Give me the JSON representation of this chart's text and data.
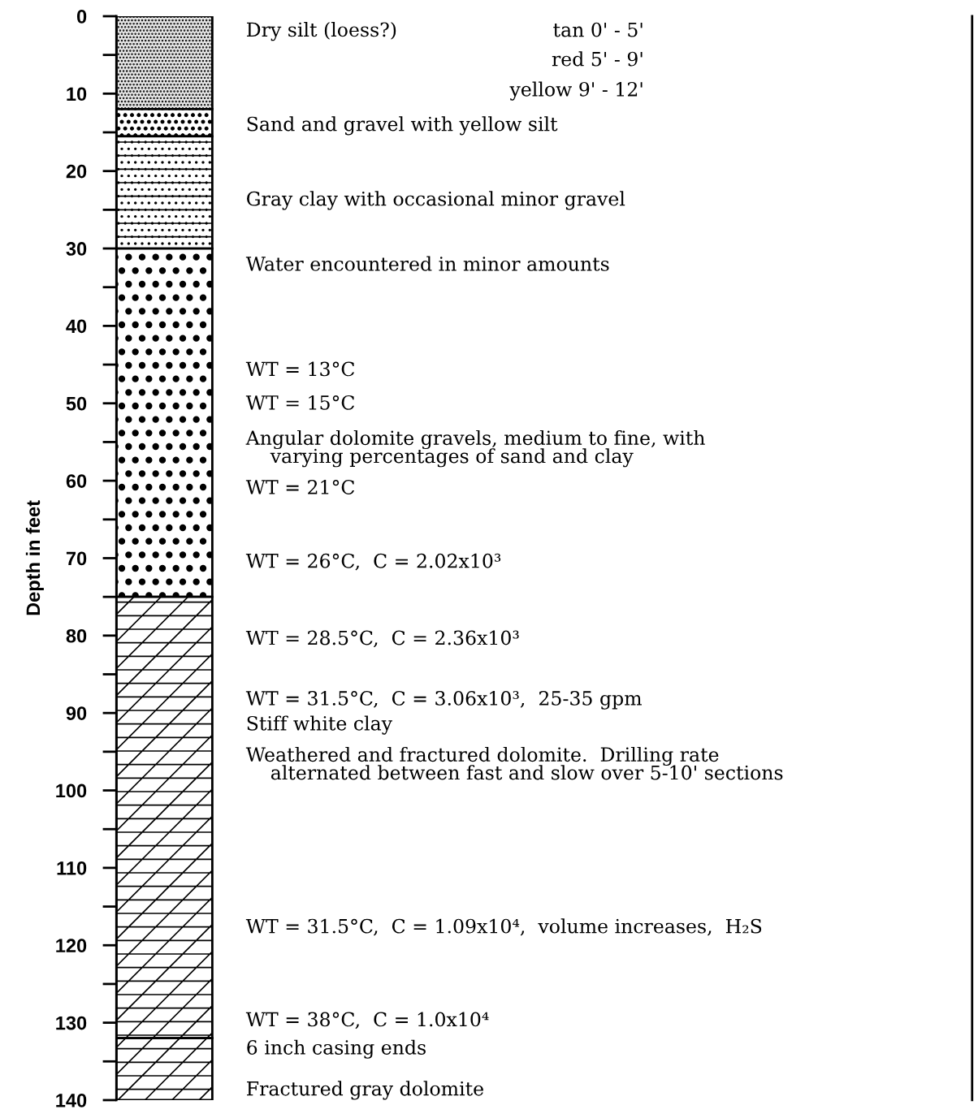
{
  "chart_data": {
    "type": "bar",
    "stacked": true,
    "categories": [
      null
    ],
    "series": [
      {
        "color": "#e6e6e6",
        "values": [
          12
        ]
      },
      {
        "color": "#ffffff",
        "values": [
          3.5
        ]
      },
      {
        "color": "#ffffff",
        "values": [
          14.5
        ]
      },
      {
        "color": "#ffffff",
        "values": [
          45
        ]
      },
      {
        "color": "#ffffff",
        "values": [
          57
        ]
      },
      {
        "color": "#ffffff",
        "values": [
          8
        ]
      }
    ],
    "ylabel": "Depth in feet",
    "ylim": [
      140,
      0
    ],
    "yticks": [
      0,
      10,
      20,
      30,
      40,
      50,
      60,
      70,
      80,
      90,
      100,
      110,
      120,
      130,
      140
    ],
    "grid": false,
    "annotations": [
      "Dry silt (loess?)",
      "tan 0' - 5'",
      "red 5' - 9'",
      "yellow 9' - 12'",
      "Sand and gravel with yellow silt",
      "Gray clay with occasional minor gravel",
      "Water encountered in minor amounts",
      "WT = 13°C",
      "WT = 15°C",
      "Angular dolomite gravels, medium to fine, with\n    varying percentages of sand and clay",
      "WT = 21°C",
      "WT = 26°C,  C = 2.02x10³",
      "WT = 28.5°C,  C = 2.36x10³",
      "WT = 31.5°C,  C = 3.06x10³,  25-35 gpm",
      "Stiff white clay",
      "Weathered and fractured dolomite.  Drilling rate\n    alternated between fast and slow over 5-10' sections",
      "WT = 31.5°C,  C = 1.09x10⁴,  volume increases,  H₂S",
      "WT = 38°C,  C = 1.0x10⁴",
      "6 inch casing ends",
      "Fractured gray dolomite"
    ]
  }
}
